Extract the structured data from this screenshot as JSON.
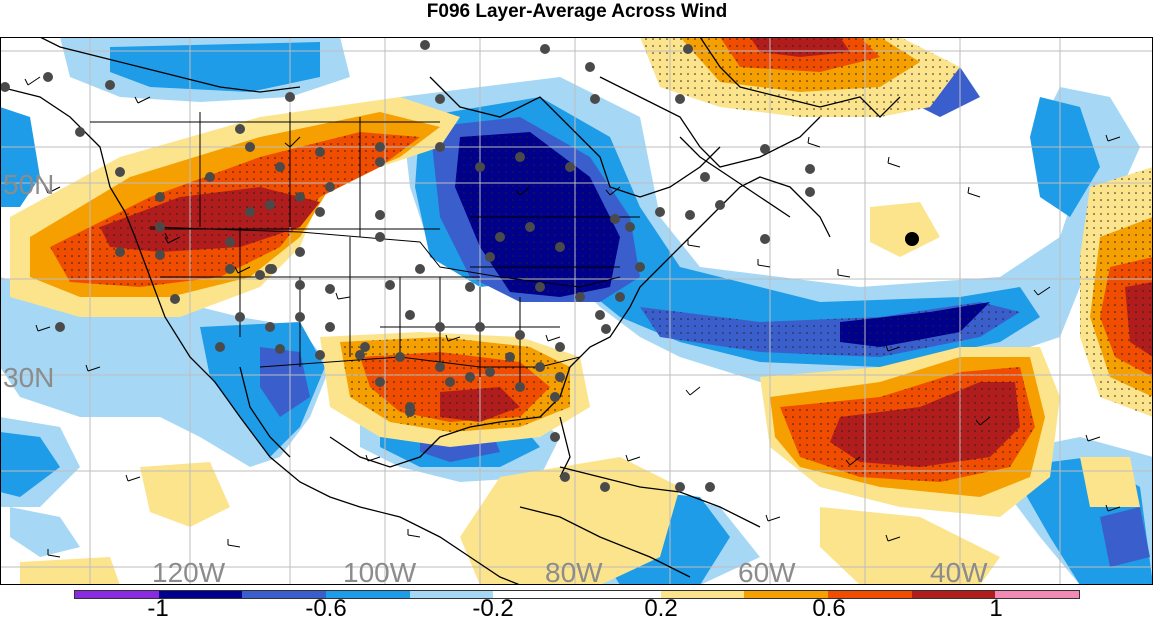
{
  "title": "F096 Layer-Average Across Wind",
  "map": {
    "lat_labels": [
      "50N",
      "30N"
    ],
    "lon_labels": [
      "120W",
      "100W",
      "80W",
      "60W",
      "40W"
    ]
  },
  "colorbar": {
    "colors": [
      "#8a2be2",
      "#00008b",
      "#3a5fcd",
      "#1e9ce8",
      "#a6d8f5",
      "#ffffff",
      "#ffffff",
      "#fbe48c",
      "#f5a000",
      "#f04d00",
      "#b11d1d",
      "#f28ab5"
    ],
    "labels": [
      "-1",
      "-0.6",
      "-0.2",
      "0.2",
      "0.6",
      "1"
    ]
  }
}
